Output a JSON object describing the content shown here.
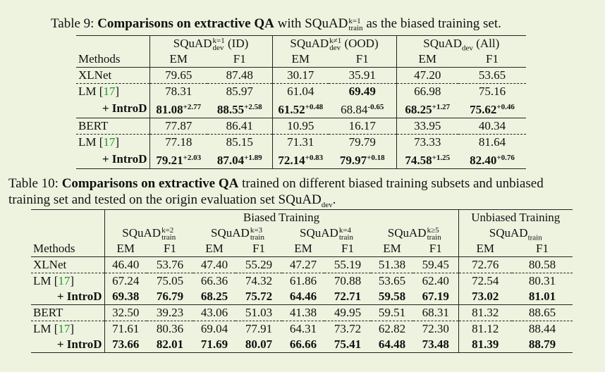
{
  "table9": {
    "caption_prefix": "Table 9:",
    "caption_bold": "Comparisons on extractive QA",
    "caption_mid": "with SQuAD",
    "caption_sup": "k=1",
    "caption_sub": "train",
    "caption_suffix": "as the biased training set.",
    "groups": [
      {
        "name": "SQuAD",
        "sup": "k=1",
        "sub": "dev",
        "tail": "(ID)"
      },
      {
        "name": "SQuAD",
        "sup": "k≠1",
        "sub": "dev",
        "tail": "(OOD)"
      },
      {
        "name": "SQuAD",
        "sup": "",
        "sub": "dev",
        "tail": "(All)"
      }
    ],
    "methods_header": "Methods",
    "metric_em": "EM",
    "metric_f1": "F1",
    "rows": [
      {
        "method": "XLNet",
        "values": [
          "79.65",
          "87.48",
          "30.17",
          "35.91",
          "47.20",
          "53.65"
        ]
      },
      {
        "method": "LM",
        "ref": "17",
        "values": [
          "78.31",
          "85.97",
          "61.04",
          "69.49",
          "66.98",
          "75.16"
        ]
      },
      {
        "method": "+ IntroD",
        "values": [
          "81.08",
          "88.55",
          "61.52",
          "68.84",
          "68.25",
          "75.62"
        ],
        "deltas": [
          "+2.77",
          "+2.58",
          "+0.48",
          "-0.65",
          "+1.27",
          "+0.46"
        ]
      },
      {
        "method": "BERT",
        "values": [
          "77.87",
          "86.41",
          "10.95",
          "16.17",
          "33.95",
          "40.34"
        ]
      },
      {
        "method": "LM",
        "ref": "17",
        "values": [
          "77.18",
          "85.15",
          "71.31",
          "79.79",
          "73.33",
          "81.64"
        ]
      },
      {
        "method": "+ IntroD",
        "values": [
          "79.21",
          "87.04",
          "72.14",
          "79.97",
          "74.58",
          "82.40"
        ],
        "deltas": [
          "+2.03",
          "+1.89",
          "+0.83",
          "+0.18",
          "+1.25",
          "+0.76"
        ]
      }
    ]
  },
  "table10": {
    "caption_prefix": "Table 10:",
    "caption_bold": "Comparisons on extractive QA",
    "caption_line1_rest": "trained on different biased training subsets and unbiased",
    "caption_line2": "training set and tested on the origin evaluation set SQuAD",
    "caption_line2_sub": "dev",
    "caption_line2_end": ".",
    "biased_header": "Biased Training",
    "unbiased_header": "Unbiased Training",
    "groups": [
      {
        "name": "SQuAD",
        "sup": "k=2",
        "sub": "train"
      },
      {
        "name": "SQuAD",
        "sup": "k=3",
        "sub": "train"
      },
      {
        "name": "SQuAD",
        "sup": "k=4",
        "sub": "train"
      },
      {
        "name": "SQuAD",
        "sup": "k≥5",
        "sub": "train"
      },
      {
        "name": "SQuAD",
        "sup": "",
        "sub": "train"
      }
    ],
    "methods_header": "Methods",
    "metric_em": "EM",
    "metric_f1": "F1",
    "rows": [
      {
        "method": "XLNet",
        "values": [
          "46.40",
          "53.76",
          "47.40",
          "55.29",
          "47.27",
          "55.19",
          "51.38",
          "59.45",
          "72.76",
          "80.58"
        ]
      },
      {
        "method": "LM",
        "ref": "17",
        "values": [
          "67.24",
          "75.05",
          "66.36",
          "74.32",
          "61.86",
          "70.88",
          "53.65",
          "62.40",
          "72.54",
          "80.31"
        ]
      },
      {
        "method": "+ IntroD",
        "values": [
          "69.38",
          "76.79",
          "68.25",
          "75.72",
          "64.46",
          "72.71",
          "59.58",
          "67.19",
          "73.02",
          "81.01"
        ]
      },
      {
        "method": "BERT",
        "values": [
          "32.50",
          "39.23",
          "43.06",
          "51.03",
          "41.38",
          "49.95",
          "59.51",
          "68.31",
          "81.32",
          "88.65"
        ]
      },
      {
        "method": "LM",
        "ref": "17",
        "values": [
          "71.61",
          "80.36",
          "69.04",
          "77.91",
          "64.31",
          "73.72",
          "62.82",
          "72.30",
          "81.12",
          "88.44"
        ]
      },
      {
        "method": "+ IntroD",
        "values": [
          "73.66",
          "82.01",
          "71.69",
          "80.07",
          "66.66",
          "75.41",
          "64.48",
          "73.48",
          "81.39",
          "88.79"
        ]
      }
    ]
  }
}
